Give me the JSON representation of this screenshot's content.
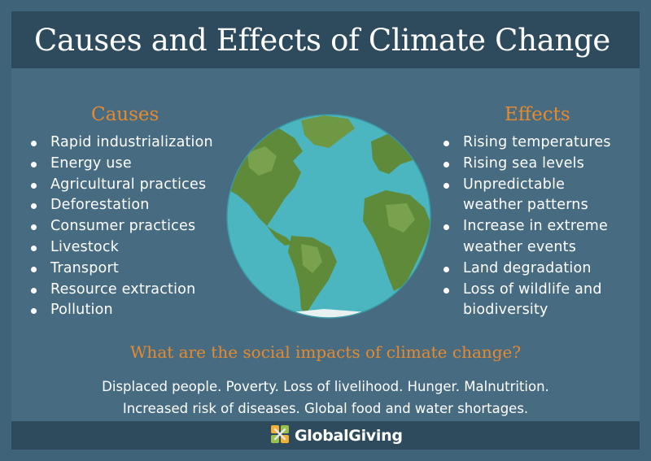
{
  "title": "Causes and Effects of Climate Change",
  "causes": {
    "heading": "Causes",
    "items": [
      "Rapid industrialization",
      "Energy use",
      "Agricultural practices",
      "Deforestation",
      "Consumer practices",
      "Livestock",
      "Transport",
      "Resource extraction",
      "Pollution"
    ]
  },
  "effects": {
    "heading": "Effects",
    "items": [
      "Rising temperatures",
      "Rising sea levels",
      "Unpredictable",
      "weather patterns",
      "Increase in extreme",
      "weather events",
      "Land degradation",
      "Loss of wildlife and",
      "biodiversity"
    ],
    "bullet_lines": [
      0,
      1,
      2,
      4,
      6,
      7
    ]
  },
  "social": {
    "question": "What are the social impacts of climate change?",
    "line1": "Displaced people. Poverty. Loss of livelihood. Hunger. Malnutrition.",
    "line2": "Increased risk of diseases. Global food and water shortages."
  },
  "footer": {
    "brand": "GlobalGiving",
    "logo_icon": "globalgiving-logo-icon"
  },
  "colors": {
    "background": "#476b80",
    "bars": "#2e4b5e",
    "accent": "#e58a2e",
    "text": "#ffffff",
    "ocean": "#4bb6c0",
    "land": "#5e8a3a"
  },
  "globe_icon": "earth-globe-icon"
}
